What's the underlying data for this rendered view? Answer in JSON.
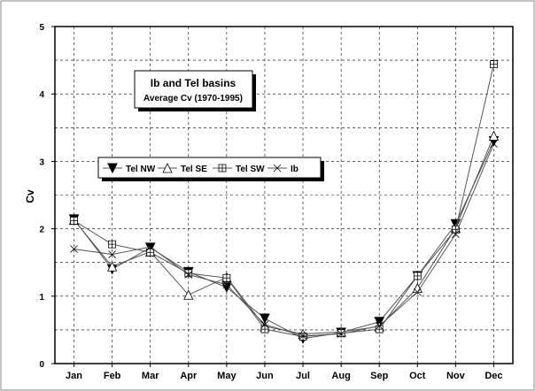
{
  "chart_data": {
    "type": "line",
    "title": "Ib and Tel basins",
    "subtitle": "Average Cv (1970-1995)",
    "xlabel": "",
    "ylabel": "Cv",
    "categories": [
      "Jan",
      "Feb",
      "Mar",
      "Apr",
      "May",
      "Jun",
      "Jul",
      "Aug",
      "Sep",
      "Oct",
      "Nov",
      "Dec"
    ],
    "ylim": [
      0,
      5
    ],
    "yticks": [
      "0",
      "1",
      "2",
      "3",
      "4",
      "5"
    ],
    "grid": true,
    "legend_position": "left-middle",
    "series": [
      {
        "name": "Tel NW",
        "marker": "triangle-down-filled",
        "values": [
          2.14,
          1.4,
          1.72,
          1.36,
          1.13,
          0.67,
          0.37,
          0.46,
          0.62,
          1.3,
          2.07,
          3.3
        ]
      },
      {
        "name": "Tel SE",
        "marker": "triangle-up-open",
        "values": [
          2.13,
          1.44,
          1.66,
          1.02,
          1.28,
          0.55,
          0.44,
          0.47,
          0.55,
          1.12,
          2.01,
          3.38
        ]
      },
      {
        "name": "Tel SW",
        "marker": "square-plus",
        "values": [
          2.12,
          1.77,
          1.65,
          1.34,
          1.27,
          0.51,
          0.4,
          0.45,
          0.51,
          1.3,
          1.99,
          4.44
        ]
      },
      {
        "name": "Ib",
        "marker": "x",
        "values": [
          1.7,
          1.62,
          1.73,
          1.32,
          1.17,
          0.58,
          0.41,
          0.44,
          0.56,
          1.06,
          1.92,
          3.26
        ]
      }
    ]
  }
}
